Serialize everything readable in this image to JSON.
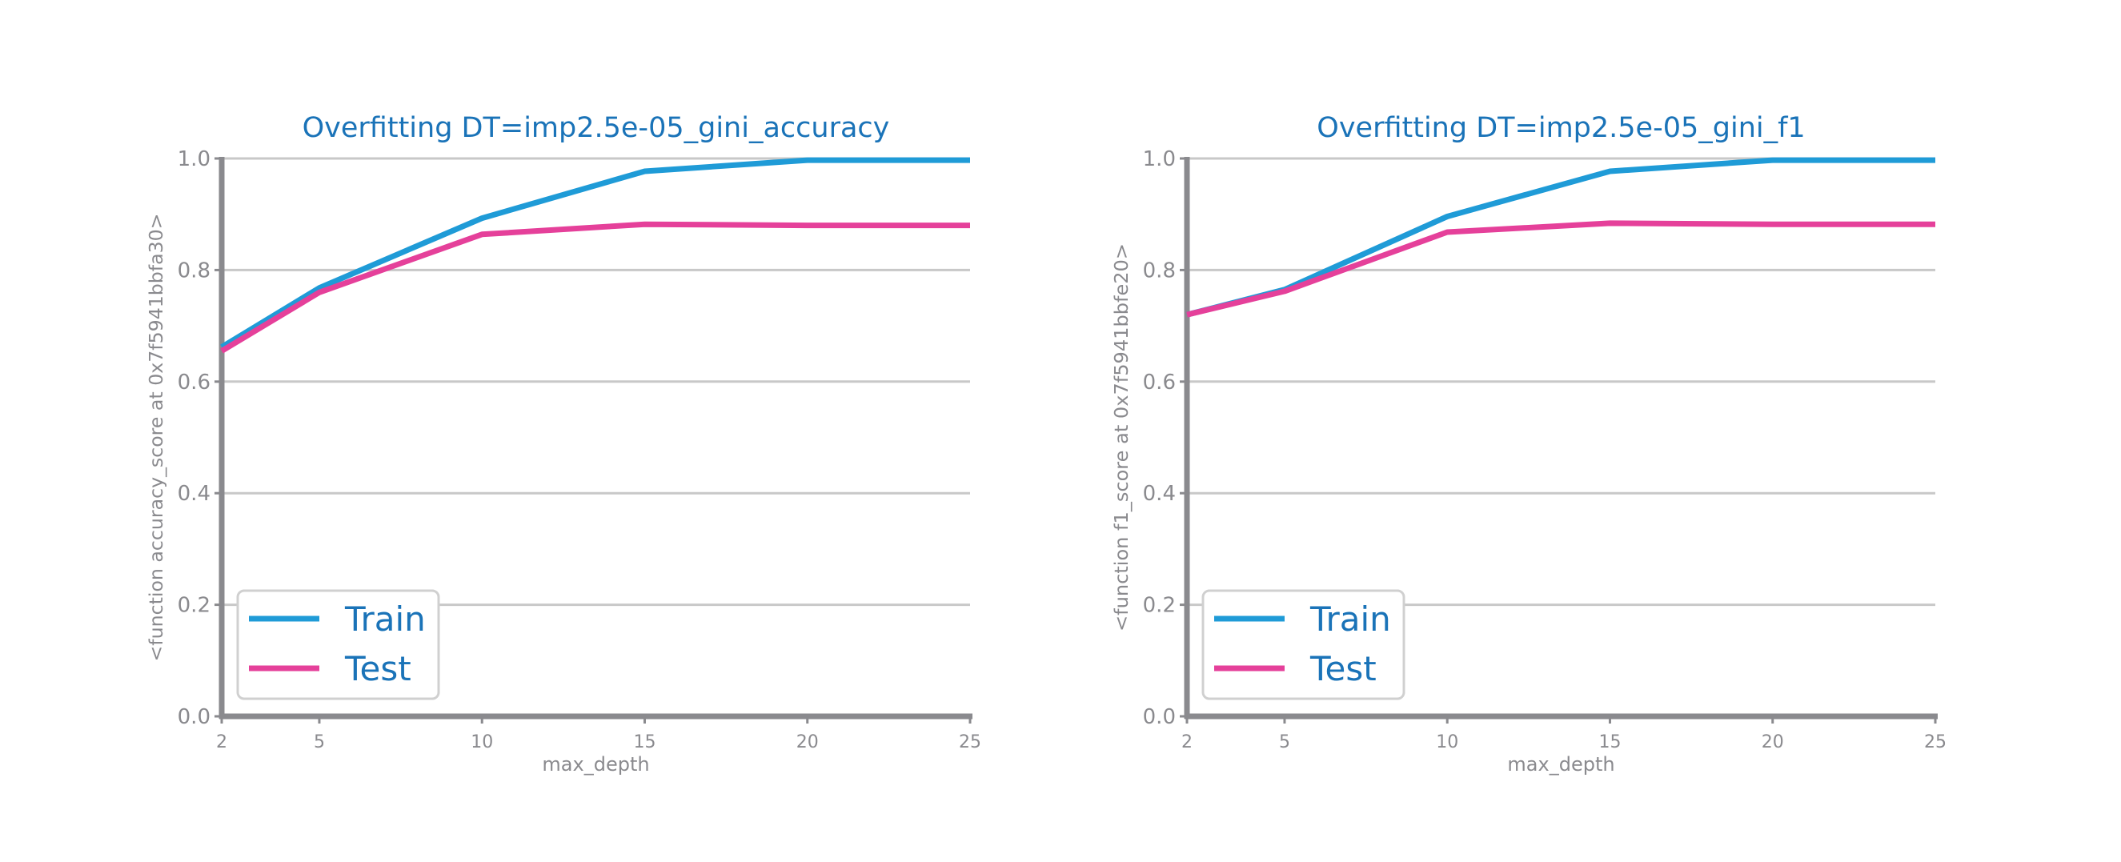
{
  "colors": {
    "train": "#1f9bd7",
    "test": "#e5409a",
    "title": "#1a73b8",
    "axis": "#8a8a8e",
    "tick_label": "#8a8a8e",
    "grid": "#c8c8c8",
    "legend_text": "#1a73b8",
    "legend_border": "#d0d0d0"
  },
  "chart_data": [
    {
      "type": "line",
      "title": "Overfitting DT=imp2.5e-05_gini_accuracy",
      "xlabel": "max_depth",
      "ylabel": "<function accuracy_score at 0x7f5941bbfa30>",
      "x": [
        2,
        5,
        10,
        15,
        20,
        25
      ],
      "xticks": [
        "2",
        "5",
        "10",
        "15",
        "20",
        "25"
      ],
      "yticks": [
        "0.0",
        "0.2",
        "0.4",
        "0.6",
        "0.8",
        "1.0"
      ],
      "xlim": [
        2,
        25
      ],
      "ylim": [
        0,
        1
      ],
      "grid": "horizontal",
      "legend_position": "lower-left",
      "series": [
        {
          "name": "Train",
          "values": [
            0.662,
            0.768,
            0.893,
            0.977,
            0.997,
            0.997
          ]
        },
        {
          "name": "Test",
          "values": [
            0.655,
            0.76,
            0.864,
            0.882,
            0.88,
            0.88
          ]
        }
      ]
    },
    {
      "type": "line",
      "title": "Overfitting DT=imp2.5e-05_gini_f1",
      "xlabel": "max_depth",
      "ylabel": "<function f1_score at 0x7f5941bbfe20>",
      "x": [
        2,
        5,
        10,
        15,
        20,
        25
      ],
      "xticks": [
        "2",
        "5",
        "10",
        "15",
        "20",
        "25"
      ],
      "yticks": [
        "0.0",
        "0.2",
        "0.4",
        "0.6",
        "0.8",
        "1.0"
      ],
      "xlim": [
        2,
        25
      ],
      "ylim": [
        0,
        1
      ],
      "grid": "horizontal",
      "legend_position": "lower-left",
      "series": [
        {
          "name": "Train",
          "values": [
            0.72,
            0.765,
            0.896,
            0.977,
            0.997,
            0.997
          ]
        },
        {
          "name": "Test",
          "values": [
            0.72,
            0.762,
            0.868,
            0.884,
            0.882,
            0.882
          ]
        }
      ]
    }
  ]
}
